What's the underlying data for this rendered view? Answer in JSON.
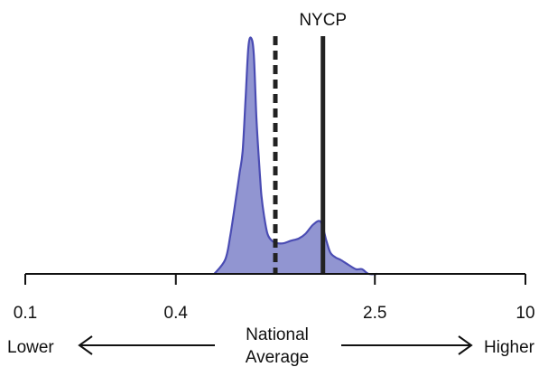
{
  "chart_data": {
    "type": "area",
    "x_scale": "log",
    "xlim": [
      0.1,
      10
    ],
    "x_ticks": [
      0.1,
      0.4,
      2.5,
      10
    ],
    "x_tick_labels": [
      "0.1",
      "0.4",
      "2.5",
      "10"
    ],
    "y_axis_visible": false,
    "grid": false,
    "density": {
      "x": [
        0.57,
        0.63,
        0.66,
        0.7,
        0.72,
        0.74,
        0.76,
        0.78,
        0.8,
        0.82,
        0.84,
        0.86,
        0.87,
        0.88,
        0.9,
        0.93,
        0.97,
        1.02,
        1.08,
        1.15,
        1.24,
        1.32,
        1.42,
        1.52,
        1.6,
        1.66,
        1.74,
        1.82,
        1.95,
        2.1,
        2.22,
        2.36,
        2.55
      ],
      "y": [
        0.0,
        0.06,
        0.16,
        0.34,
        0.43,
        0.52,
        0.74,
        0.96,
        1.0,
        0.93,
        0.66,
        0.48,
        0.4,
        0.33,
        0.25,
        0.17,
        0.14,
        0.13,
        0.13,
        0.14,
        0.15,
        0.17,
        0.21,
        0.22,
        0.14,
        0.09,
        0.07,
        0.06,
        0.04,
        0.02,
        0.02,
        0.0,
        0.0
      ]
    },
    "fill_color": "#8b8fcf",
    "line_color": "#4a4cb3",
    "reference_lines": [
      {
        "value": 1.0,
        "style": "dashed",
        "label": "National Average"
      },
      {
        "value": 1.55,
        "style": "solid",
        "label": "NYCP"
      }
    ],
    "bottom_labels": {
      "left": "Lower",
      "right": "Higher"
    }
  }
}
